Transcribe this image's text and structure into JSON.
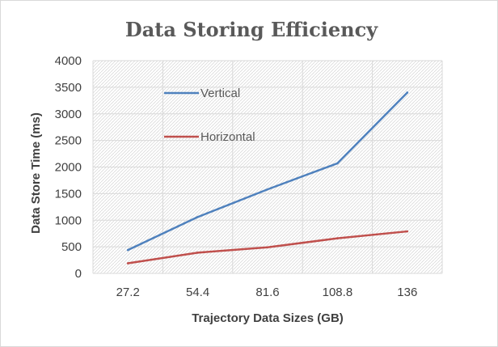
{
  "chart_data": {
    "type": "line",
    "title": "Data Storing Efficiency",
    "xlabel": "Trajectory Data Sizes (GB)",
    "ylabel": "Data Store Time  (ms)",
    "categories": [
      "27.2",
      "54.4",
      "81.6",
      "108.8",
      "136"
    ],
    "y_ticks": [
      "0",
      "500",
      "1000",
      "1500",
      "2000",
      "2500",
      "3000",
      "3500",
      "4000"
    ],
    "ylim": [
      0,
      4000
    ],
    "grid": true,
    "legend_position": "inside-top-left",
    "series": [
      {
        "name": "Vertical",
        "color": "#4f81bd",
        "values": [
          440,
          1060,
          1580,
          2070,
          3400
        ]
      },
      {
        "name": "Horizontal",
        "color": "#c0504d",
        "values": [
          190,
          390,
          490,
          660,
          790
        ]
      }
    ]
  }
}
